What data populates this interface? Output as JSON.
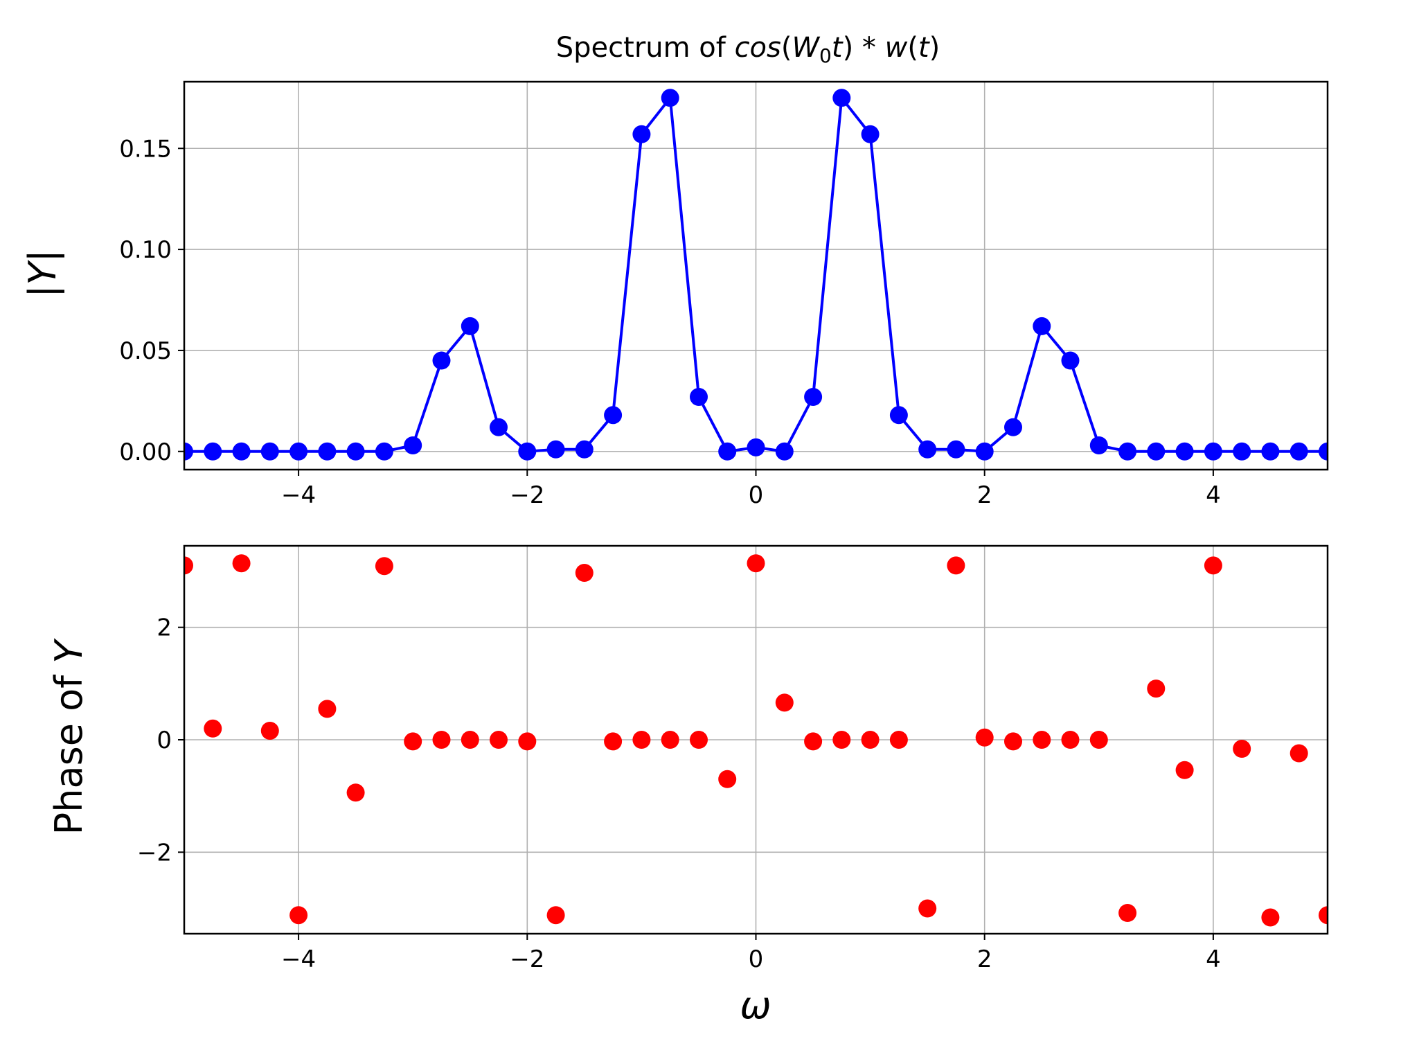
{
  "chart_data": [
    {
      "type": "line",
      "title_parts": [
        "Spectrum of ",
        "cos",
        "(",
        "W",
        "0",
        "t",
        ") * ",
        "w",
        "(",
        "t",
        ")"
      ],
      "xlabel": "",
      "ylabel": "|Y|",
      "xlim": [
        -5,
        5
      ],
      "ylim": [
        -0.009,
        0.183
      ],
      "xticks": [
        -4,
        -2,
        0,
        2,
        4
      ],
      "xtick_labels": [
        "−4",
        "−2",
        "0",
        "2",
        "4"
      ],
      "yticks": [
        0.0,
        0.05,
        0.1,
        0.15
      ],
      "ytick_labels": [
        "0.00",
        "0.05",
        "0.10",
        "0.15"
      ],
      "grid": true,
      "color": "#0000ff",
      "marker": "circle",
      "x": [
        -5.0,
        -4.75,
        -4.5,
        -4.25,
        -4.0,
        -3.75,
        -3.5,
        -3.25,
        -3.0,
        -2.75,
        -2.5,
        -2.25,
        -2.0,
        -1.75,
        -1.5,
        -1.25,
        -1.0,
        -0.75,
        -0.5,
        -0.25,
        0.0,
        0.25,
        0.5,
        0.75,
        1.0,
        1.25,
        1.5,
        1.75,
        2.0,
        2.25,
        2.5,
        2.75,
        3.0,
        3.25,
        3.5,
        3.75,
        4.0,
        4.25,
        4.5,
        4.75,
        5.0
      ],
      "y": [
        0.0,
        0.0,
        0.0,
        0.0,
        0.0,
        0.0,
        0.0,
        0.0,
        0.003,
        0.045,
        0.062,
        0.012,
        0.0,
        0.001,
        0.001,
        0.018,
        0.157,
        0.175,
        0.027,
        0.0,
        0.002,
        0.0,
        0.027,
        0.175,
        0.157,
        0.018,
        0.001,
        0.001,
        0.0,
        0.012,
        0.062,
        0.045,
        0.003,
        0.0,
        0.0,
        0.0,
        0.0,
        0.0,
        0.0,
        0.0,
        0.0
      ]
    },
    {
      "type": "scatter",
      "xlabel": "ω",
      "ylabel": "Phase of Y",
      "ylabel_parts": [
        "Phase of ",
        "Y"
      ],
      "xlim": [
        -5,
        5
      ],
      "ylim": [
        -3.45,
        3.45
      ],
      "xticks": [
        -4,
        -2,
        0,
        2,
        4
      ],
      "xtick_labels": [
        "−4",
        "−2",
        "0",
        "2",
        "4"
      ],
      "yticks": [
        -2,
        0,
        2
      ],
      "ytick_labels": [
        "−2",
        "0",
        "2"
      ],
      "grid": true,
      "color": "#ff0000",
      "marker": "circle",
      "x": [
        -5.0,
        -4.75,
        -4.5,
        -4.25,
        -4.0,
        -3.75,
        -3.5,
        -3.25,
        -3.0,
        -2.75,
        -2.5,
        -2.25,
        -2.0,
        -1.75,
        -1.5,
        -1.25,
        -1.0,
        -0.75,
        -0.5,
        -0.25,
        0.0,
        0.25,
        0.5,
        0.75,
        1.0,
        1.25,
        1.5,
        1.75,
        2.0,
        2.25,
        2.5,
        2.75,
        3.0,
        3.25,
        3.5,
        3.75,
        4.0,
        4.25,
        4.5,
        4.75,
        5.0
      ],
      "y": [
        3.1,
        0.2,
        3.14,
        0.16,
        -3.12,
        0.55,
        -0.94,
        3.09,
        -0.03,
        0.0,
        0.0,
        0.0,
        -0.03,
        -3.12,
        2.97,
        -0.03,
        0.0,
        0.0,
        0.0,
        -0.7,
        3.14,
        0.66,
        -0.03,
        0.0,
        0.0,
        0.0,
        -3.0,
        3.1,
        0.04,
        -0.03,
        0.0,
        0.0,
        0.0,
        -3.08,
        0.91,
        -0.54,
        3.1,
        -0.16,
        -3.16,
        -0.24,
        -3.12
      ]
    }
  ]
}
